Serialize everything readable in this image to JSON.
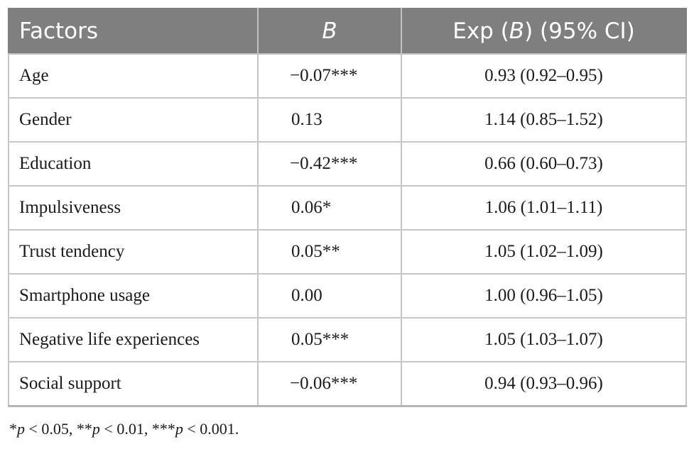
{
  "table": {
    "headers": {
      "factors": "Factors",
      "b": "B",
      "exp_prefix": "Exp (",
      "exp_b": "B",
      "exp_suffix": ") (95% CI)"
    },
    "rows": [
      {
        "factor": "Age",
        "b": "−0.07***",
        "exp": "0.93 (0.92–0.95)"
      },
      {
        "factor": "Gender",
        "b": "0.13",
        "exp": "1.14 (0.85–1.52)"
      },
      {
        "factor": "Education",
        "b": "−0.42***",
        "exp": "0.66 (0.60–0.73)"
      },
      {
        "factor": "Impulsiveness",
        "b": "0.06*",
        "exp": "1.06 (1.01–1.11)"
      },
      {
        "factor": "Trust tendency",
        "b": "0.05**",
        "exp": "1.05 (1.02–1.09)"
      },
      {
        "factor": "Smartphone usage",
        "b": "0.00",
        "exp": "1.00 (0.96–1.05)"
      },
      {
        "factor": "Negative life experiences",
        "b": "0.05***",
        "exp": "1.05 (1.03–1.07)"
      },
      {
        "factor": "Social support",
        "b": "−0.06***",
        "exp": "0.94 (0.93–0.96)"
      }
    ]
  },
  "footnote": {
    "s1": "*",
    "p1": "p",
    "t1": " < 0.05, **",
    "p2": "p",
    "t2": " < 0.01, ***",
    "p3": "p",
    "t3": " < 0.001."
  }
}
